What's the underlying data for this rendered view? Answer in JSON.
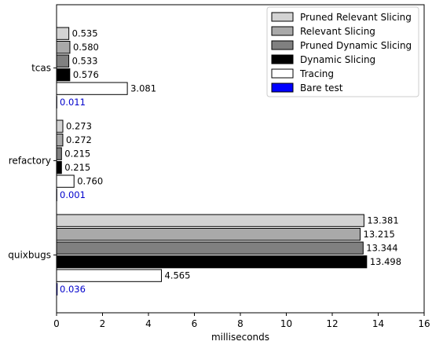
{
  "chart_data": {
    "type": "bar",
    "orientation": "horizontal",
    "xlabel": "milliseconds",
    "ylabel": "",
    "xlim": [
      0,
      16
    ],
    "xticks": [
      "0",
      "2",
      "4",
      "6",
      "8",
      "10",
      "12",
      "14",
      "16"
    ],
    "grid": false,
    "legend_position": "top-right",
    "categories": [
      "tcas",
      "refactory",
      "quixbugs"
    ],
    "series": [
      {
        "name": "Pruned Relevant Slicing",
        "color": "#d3d3d3",
        "values": [
          0.535,
          0.273,
          13.381
        ],
        "labels": [
          "0.535",
          "0.273",
          "13.381"
        ],
        "label_color": "#000000"
      },
      {
        "name": "Relevant Slicing",
        "color": "#a9a9a9",
        "values": [
          0.58,
          0.272,
          13.215
        ],
        "labels": [
          "0.580",
          "0.272",
          "13.215"
        ],
        "label_color": "#000000"
      },
      {
        "name": "Pruned Dynamic Slicing",
        "color": "#808080",
        "values": [
          0.533,
          0.215,
          13.344
        ],
        "labels": [
          "0.533",
          "0.215",
          "13.344"
        ],
        "label_color": "#000000"
      },
      {
        "name": "Dynamic Slicing",
        "color": "#000000",
        "values": [
          0.576,
          0.215,
          13.498
        ],
        "labels": [
          "0.576",
          "0.215",
          "13.498"
        ],
        "label_color": "#000000"
      },
      {
        "name": "Tracing",
        "color": "#ffffff",
        "values": [
          3.081,
          0.76,
          4.565
        ],
        "labels": [
          "3.081",
          "0.760",
          "4.565"
        ],
        "label_color": "#000000"
      },
      {
        "name": "Bare test",
        "color": "#0000ff",
        "values": [
          0.011,
          0.001,
          0.036
        ],
        "labels": [
          "0.011",
          "0.001",
          "0.036"
        ],
        "label_color": "#0000cc"
      }
    ]
  }
}
